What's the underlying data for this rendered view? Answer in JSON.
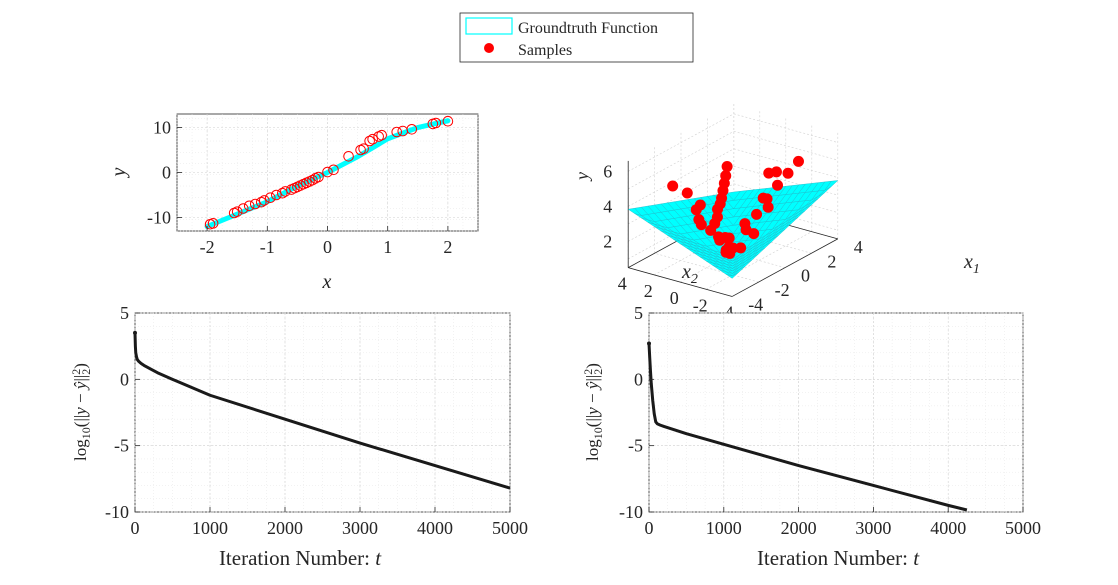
{
  "legend": {
    "entries": [
      {
        "label": "Groundtruth Function",
        "kind": "patch",
        "color": "#00FFFF"
      },
      {
        "label": "Samples",
        "kind": "marker",
        "color": "#FF0000"
      }
    ]
  },
  "colors": {
    "groundtruth": "#00FFFF",
    "samples": "#FF0000",
    "loss_line": "#1a1a1a",
    "axes": "#262626"
  },
  "chart_data": [
    {
      "type": "scatter",
      "id": "fit-1d",
      "xlabel": "x",
      "ylabel": "y",
      "xlim": [
        -2.5,
        2.5
      ],
      "ylim": [
        -13,
        13
      ],
      "xticks": [
        -2,
        -1,
        0,
        1,
        2
      ],
      "xtick_labels": [
        "-2",
        "-1",
        "0",
        "1",
        "2"
      ],
      "yticks": [
        -10,
        0,
        10
      ],
      "ytick_labels": [
        "-10",
        "0",
        "10"
      ],
      "grid": true,
      "groundtruth_line": {
        "x": [
          -2,
          -1,
          -0.5,
          0,
          0.5,
          1,
          1.5,
          2
        ],
        "y": [
          -12,
          -6.5,
          -3,
          0,
          3.5,
          7.5,
          10,
          11.5
        ]
      },
      "samples": {
        "x": [
          -1.95,
          -1.9,
          -1.55,
          -1.5,
          -1.4,
          -1.3,
          -1.2,
          -1.1,
          -1.05,
          -0.95,
          -0.85,
          -0.75,
          -0.7,
          -0.6,
          -0.55,
          -0.5,
          -0.45,
          -0.4,
          -0.35,
          -0.3,
          -0.25,
          -0.2,
          -0.15,
          0.0,
          0.1,
          0.35,
          0.55,
          0.6,
          0.7,
          0.75,
          0.85,
          0.9,
          1.15,
          1.25,
          1.4,
          1.75,
          1.8,
          2.0
        ],
        "y": [
          -11.5,
          -11.3,
          -9.0,
          -8.7,
          -8.0,
          -7.4,
          -7.0,
          -6.6,
          -6.2,
          -5.6,
          -5.0,
          -4.6,
          -4.2,
          -3.8,
          -3.5,
          -3.2,
          -2.9,
          -2.6,
          -2.3,
          -2.0,
          -1.7,
          -1.3,
          -1.0,
          0.1,
          0.6,
          3.6,
          5.0,
          5.3,
          7.0,
          7.4,
          8.0,
          8.3,
          9.0,
          9.2,
          9.6,
          10.8,
          11.0,
          11.4
        ]
      }
    },
    {
      "type": "scatter",
      "id": "fit-2d",
      "xlabel": "x_1",
      "ylabel": "x_2",
      "zlabel": "y",
      "xlim": [
        -4,
        4
      ],
      "ylim": [
        -4,
        4
      ],
      "zlim": [
        0,
        6
      ],
      "xticks": [
        -4,
        -2,
        0,
        2,
        4
      ],
      "xtick_labels": [
        "-4",
        "-2",
        "0",
        "2",
        "4"
      ],
      "yticks": [
        -4,
        -2,
        0,
        2,
        4
      ],
      "ytick_labels": [
        "-4",
        "-2",
        "0",
        "2",
        "4"
      ],
      "zticks": [
        2,
        4,
        6
      ],
      "ztick_labels": [
        "2",
        "4",
        "6"
      ],
      "grid": true,
      "groundtruth_surface": "V-shaped plane y = |x_1 - x_2| / 2.2 + |x_1 + x_2| / 4 + 0.2",
      "samples": {
        "x1": [
          -0.5,
          -1.0,
          -1.5,
          -2.0,
          -2.5,
          -3.0,
          -0.8,
          -1.2,
          -1.8,
          -0.3,
          0.2,
          0.6,
          1.0,
          1.4,
          1.8,
          2.2,
          2.6,
          3.0,
          -0.6,
          -1.4,
          -2.2,
          -0.9,
          0.4,
          0.8,
          1.2,
          1.6,
          2.0,
          2.4,
          0.0,
          -0.2,
          0.5,
          1.1,
          -1.6,
          -2.6,
          2.8,
          3.3,
          -0.4,
          0.3,
          1.5,
          -1.1
        ],
        "x2": [
          -0.2,
          -0.6,
          -1.0,
          -1.6,
          -2.0,
          -2.8,
          0.3,
          0.5,
          0.8,
          1.1,
          1.4,
          1.8,
          2.0,
          2.3,
          2.6,
          2.9,
          3.2,
          3.5,
          -1.2,
          -0.4,
          0.2,
          1.6,
          -0.6,
          -1.0,
          -1.4,
          -1.8,
          -2.2,
          -2.6,
          0.0,
          0.4,
          0.8,
          0.2,
          1.2,
          2.0,
          -0.5,
          0.6,
          -2.0,
          -2.4,
          -0.8,
          2.4
        ],
        "y": [
          0.5,
          0.6,
          0.9,
          1.2,
          1.4,
          1.7,
          1.1,
          1.6,
          2.4,
          1.5,
          1.6,
          1.8,
          1.9,
          2.0,
          2.2,
          2.4,
          2.6,
          2.9,
          0.7,
          1.3,
          2.4,
          2.7,
          1.2,
          2.0,
          2.8,
          3.5,
          4.1,
          4.7,
          0.2,
          0.8,
          0.4,
          1.1,
          2.8,
          4.4,
          3.5,
          3.0,
          1.6,
          2.9,
          2.6,
          3.3
        ]
      }
    },
    {
      "type": "line",
      "id": "loss-left",
      "xlabel": "Iteration Number:",
      "xlabel_var": "t",
      "ylabel": "log10(||y - ŷ||²₂)",
      "xlim": [
        0,
        5000
      ],
      "ylim": [
        -10,
        5
      ],
      "xticks": [
        0,
        1000,
        2000,
        3000,
        4000,
        5000
      ],
      "xtick_labels": [
        "0",
        "1000",
        "2000",
        "3000",
        "4000",
        "5000"
      ],
      "yticks": [
        -10,
        -5,
        0,
        5
      ],
      "ytick_labels": [
        "-10",
        "-5",
        "0",
        "5"
      ],
      "grid": true,
      "series": [
        {
          "x": [
            0,
            5,
            10,
            20,
            30,
            50,
            80,
            120,
            200,
            300,
            500,
            1000,
            2000,
            3000,
            4000,
            5000
          ],
          "y": [
            3.5,
            2.5,
            2.0,
            1.7,
            1.5,
            1.35,
            1.2,
            1.05,
            0.8,
            0.5,
            0.0,
            -1.2,
            -3.0,
            -4.8,
            -6.5,
            -8.2
          ]
        }
      ]
    },
    {
      "type": "line",
      "id": "loss-right",
      "xlabel": "Iteration Number:",
      "xlabel_var": "t",
      "ylabel": "log10(||y - ŷ||²₂)",
      "xlim": [
        0,
        5000
      ],
      "ylim": [
        -10,
        5
      ],
      "xticks": [
        0,
        1000,
        2000,
        3000,
        4000,
        5000
      ],
      "xtick_labels": [
        "0",
        "1000",
        "2000",
        "3000",
        "4000",
        "5000"
      ],
      "yticks": [
        -10,
        -5,
        0,
        5
      ],
      "ytick_labels": [
        "-10",
        "-5",
        "0",
        "5"
      ],
      "grid": true,
      "series": [
        {
          "x": [
            0,
            10,
            20,
            30,
            50,
            70,
            90,
            110,
            150,
            200,
            500,
            1000,
            2000,
            3000,
            4000,
            4250
          ],
          "y": [
            2.7,
            1.6,
            0.6,
            -0.3,
            -1.6,
            -2.6,
            -3.2,
            -3.35,
            -3.45,
            -3.55,
            -4.1,
            -4.9,
            -6.5,
            -8.0,
            -9.5,
            -9.85
          ]
        }
      ]
    }
  ]
}
